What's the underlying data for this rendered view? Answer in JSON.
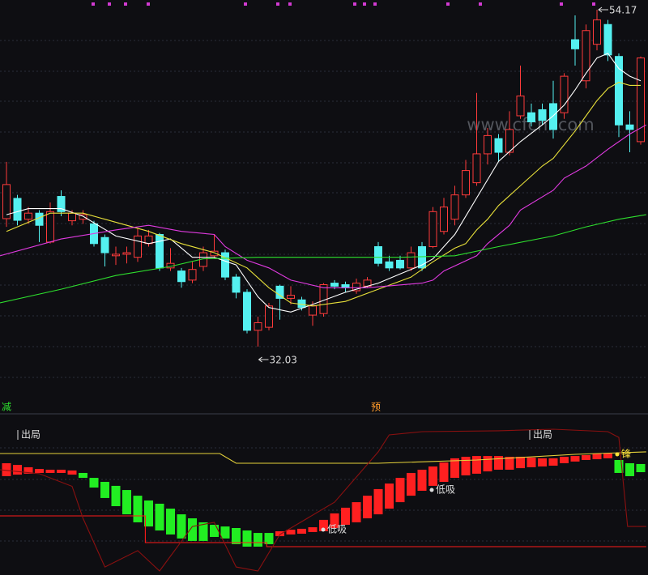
{
  "chart_data": {
    "type": "candlestick",
    "watermark": "www.cfchi.com",
    "ylim": [
      29.26,
      54.81
    ],
    "up_color": "#ff3b3b",
    "down_color": "#54f0f0",
    "open": [
      40.44,
      41.77,
      40.4,
      40.8,
      38.9,
      41.9,
      40.3,
      40.4,
      40.1,
      39.2,
      38.0,
      38.1,
      37.9,
      38.8,
      39.4,
      37.2,
      37.0,
      36.4,
      37.3,
      38.0,
      38.2,
      36.6,
      35.6,
      33.1,
      33.3,
      36.0,
      35.2,
      35.1,
      34.1,
      34.2,
      36.2,
      36.1,
      35.7,
      36.0,
      38.6,
      37.6,
      37.7,
      37.2,
      38.6,
      38.6,
      39.6,
      40.4,
      42.0,
      42.8,
      44.7,
      45.7,
      44.8,
      47.2,
      47.4,
      47.6,
      48.0,
      47.4,
      52.2,
      49.5,
      51.9,
      53.2,
      51.1,
      46.6,
      45.5
    ],
    "high": [
      44.17,
      42.0,
      41.2,
      41.0,
      41.5,
      42.3,
      41.0,
      41.0,
      40.3,
      39.4,
      38.6,
      38.6,
      39.8,
      39.7,
      39.5,
      38.5,
      37.2,
      37.6,
      38.6,
      39.4,
      38.4,
      36.8,
      35.8,
      34.0,
      34.9,
      36.1,
      36.0,
      35.3,
      35.0,
      36.2,
      36.4,
      36.3,
      36.5,
      36.6,
      38.9,
      38.0,
      38.0,
      38.6,
      38.9,
      41.2,
      41.8,
      42.6,
      44.3,
      48.7,
      46.4,
      46.0,
      47.5,
      50.5,
      48.0,
      48.0,
      49.5,
      50.0,
      53.8,
      53.2,
      54.17,
      53.5,
      51.3,
      47.5,
      51.1
    ],
    "low": [
      39.9,
      40.0,
      40.1,
      38.9,
      38.8,
      40.6,
      40.0,
      40.1,
      38.6,
      37.3,
      37.4,
      37.5,
      37.6,
      38.6,
      37.0,
      37.0,
      35.9,
      36.2,
      37.0,
      37.8,
      36.4,
      35.2,
      32.9,
      32.03,
      33.1,
      33.8,
      34.8,
      34.4,
      33.4,
      34.0,
      35.8,
      35.6,
      35.5,
      35.9,
      37.3,
      37.0,
      37.1,
      37.0,
      37.0,
      38.5,
      39.4,
      40.0,
      41.8,
      42.6,
      44.0,
      44.2,
      44.6,
      47.0,
      46.5,
      46.6,
      45.7,
      47.0,
      50.5,
      49.0,
      51.5,
      50.8,
      45.8,
      44.8,
      45.3
    ],
    "close": [
      42.68,
      40.33,
      40.8,
      40.0,
      40.9,
      40.9,
      40.8,
      40.7,
      38.8,
      38.2,
      38.1,
      38.2,
      39.3,
      39.3,
      37.2,
      37.5,
      36.3,
      37.1,
      38.2,
      38.3,
      36.6,
      35.6,
      33.1,
      33.6,
      34.7,
      35.2,
      35.4,
      34.6,
      34.7,
      36.1,
      36.0,
      35.9,
      36.2,
      36.4,
      37.5,
      37.2,
      37.2,
      38.2,
      37.2,
      40.9,
      41.2,
      42.0,
      43.6,
      44.7,
      45.9,
      44.8,
      46.3,
      48.5,
      46.8,
      46.9,
      46.3,
      49.8,
      51.6,
      52.8,
      53.5,
      51.2,
      46.6,
      46.3,
      51.0
    ],
    "lines": [
      {
        "color": "#ffffff",
        "x": [
          0,
          2,
          5,
          7,
          10,
          13,
          15,
          17,
          19,
          21,
          23,
          24,
          26,
          28,
          31,
          34,
          36,
          38,
          39,
          40,
          41,
          43,
          45,
          47,
          49,
          50,
          51,
          52,
          53,
          54,
          55,
          56,
          57,
          58
        ],
        "values": [
          40.7,
          41.1,
          41.1,
          40.6,
          39.3,
          38.8,
          39.1,
          37.9,
          37.9,
          37.4,
          35.3,
          34.6,
          34.3,
          34.8,
          35.6,
          36.2,
          36.8,
          37.4,
          37.8,
          38.6,
          39.4,
          41.8,
          44.2,
          45.5,
          46.6,
          47.2,
          47.9,
          48.9,
          50.0,
          51.0,
          51.3,
          50.3,
          49.8,
          49.5
        ]
      },
      {
        "color": "#e8e03a",
        "x": [
          0,
          4,
          7,
          9,
          13,
          16,
          19,
          22,
          24,
          26,
          28,
          31,
          34,
          37,
          39,
          41,
          42,
          43,
          44,
          45,
          47,
          49,
          50,
          52,
          53,
          54,
          55,
          56,
          57,
          58
        ],
        "values": [
          39.6,
          40.8,
          40.8,
          40.4,
          39.6,
          38.8,
          38.2,
          37.2,
          35.9,
          34.9,
          34.7,
          35.0,
          35.8,
          36.6,
          37.6,
          38.5,
          38.8,
          39.7,
          40.4,
          41.3,
          42.6,
          43.9,
          44.4,
          46.2,
          47.2,
          48.2,
          49.0,
          49.4,
          49.2,
          49.2
        ]
      },
      {
        "color": "#e03ae0",
        "x": [
          -0.6,
          5,
          10,
          13,
          16,
          19,
          20,
          22,
          24,
          26,
          29,
          33,
          38,
          39,
          40,
          43,
          44,
          46,
          47,
          50,
          51,
          53,
          55,
          57,
          58.5
        ],
        "values": [
          38.0,
          39.1,
          39.7,
          40.0,
          39.6,
          39.4,
          38.6,
          37.7,
          37.2,
          36.4,
          35.9,
          35.9,
          36.2,
          36.4,
          37.0,
          38.0,
          38.8,
          40.0,
          41.0,
          42.3,
          43.1,
          43.9,
          45.0,
          46.0,
          46.6
        ]
      },
      {
        "color": "#2ee02e",
        "x": [
          -0.6,
          5,
          10,
          15,
          18,
          23,
          29,
          36,
          41,
          45,
          50,
          53,
          56,
          58.5
        ],
        "values": [
          34.9,
          35.8,
          36.7,
          37.3,
          37.8,
          37.9,
          37.9,
          37.9,
          38.0,
          38.6,
          39.3,
          39.9,
          40.4,
          40.7
        ]
      }
    ],
    "markers": [
      "减",
      "预"
    ],
    "indicator": {
      "type": "bar",
      "ylim": [
        0,
        100
      ],
      "top": [
        70.0,
        68.9,
        67.4,
        66.3,
        65.8,
        65.8,
        65.3,
        63.7,
        60.5,
        57.9,
        55.3,
        52.6,
        48.9,
        45.8,
        43.7,
        40.5,
        36.8,
        34.2,
        31.6,
        30.0,
        28.9,
        27.9,
        26.3,
        24.7,
        24.7,
        25.8,
        26.8,
        27.4,
        28.4,
        33.2,
        37.4,
        41.1,
        44.7,
        48.9,
        53.2,
        56.8,
        60.5,
        63.7,
        65.8,
        67.9,
        70.5,
        73.2,
        74.2,
        74.7,
        74.7,
        74.7,
        74.2,
        74.2,
        73.7,
        73.2,
        73.2,
        74.2,
        74.7,
        75.3,
        76.3,
        76.3,
        72.1,
        70.0,
        69.5
      ],
      "bottom": [
        61.6,
        62.6,
        63.2,
        63.7,
        63.7,
        63.7,
        62.6,
        60.5,
        54.2,
        47.4,
        42.1,
        36.8,
        31.6,
        28.9,
        26.3,
        23.7,
        21.1,
        19.5,
        19.5,
        22.1,
        21.1,
        17.4,
        15.8,
        15.8,
        17.4,
        22.6,
        23.7,
        24.2,
        25.3,
        25.8,
        27.9,
        30.0,
        31.6,
        34.2,
        36.8,
        40.5,
        44.7,
        48.9,
        52.1,
        55.3,
        57.9,
        60.5,
        62.1,
        63.2,
        64.7,
        65.8,
        65.8,
        66.8,
        67.4,
        67.9,
        68.4,
        70.0,
        71.1,
        72.1,
        72.6,
        73.2,
        63.7,
        61.6,
        64.2
      ],
      "colors": [
        "#ff2020",
        "#ff2020",
        "#ff2020",
        "#ff2020",
        "#ff2020",
        "#ff2020",
        "#ff2020",
        "#22ee22",
        "#22ee22",
        "#22ee22",
        "#22ee22",
        "#22ee22",
        "#22ee22",
        "#22ee22",
        "#22ee22",
        "#22ee22",
        "#22ee22",
        "#22ee22",
        "#22ee22",
        "#22ee22",
        "#22ee22",
        "#22ee22",
        "#22ee22",
        "#22ee22",
        "#22ee22",
        "#ff2020",
        "#ff2020",
        "#ff2020",
        "#ff2020",
        "#ff2020",
        "#ff2020",
        "#ff2020",
        "#ff2020",
        "#ff2020",
        "#ff2020",
        "#ff2020",
        "#ff2020",
        "#ff2020",
        "#ff2020",
        "#ff2020",
        "#ff2020",
        "#ff2020",
        "#ff2020",
        "#ff2020",
        "#ff2020",
        "#ff2020",
        "#ff2020",
        "#ff2020",
        "#ff2020",
        "#ff2020",
        "#ff2020",
        "#ff2020",
        "#ff2020",
        "#ff2020",
        "#ff2020",
        "#ff2020",
        "#22ee22",
        "#22ee22",
        "#22ee22"
      ],
      "lines": [
        {
          "color": "#e6d23a",
          "x": [
            -0.6,
            19.5,
            21,
            34,
            43,
            52,
            58.5
          ],
          "values": [
            76.3,
            76.3,
            70.0,
            70.0,
            72.1,
            75.8,
            77.4
          ]
        },
        {
          "color": "#ff1a1a",
          "x": [
            -0.6,
            12.7,
            12.7,
            23.8,
            23.8,
            58.5
          ],
          "values": [
            35.8,
            35.8,
            18.4,
            18.4,
            15.8,
            15.8
          ]
        },
        {
          "color": "#8a1010",
          "x": [
            -0.6,
            3,
            6,
            7,
            9,
            12,
            14,
            17,
            19,
            21,
            23,
            25,
            30,
            34,
            35,
            38,
            45,
            50,
            55,
            56,
            56.8,
            58.5
          ],
          "values": [
            65.8,
            63.2,
            55,
            34.2,
            2.6,
            13.2,
            0,
            28.9,
            31.6,
            2.6,
            0,
            23.7,
            44.7,
            77.4,
            88.4,
            90.5,
            91.1,
            92.1,
            90.5,
            86.8,
            28.9,
            28.9
          ]
        }
      ],
      "labels": [
        "出局",
        "出局",
        "低吸",
        "低吸",
        "锋"
      ]
    }
  }
}
